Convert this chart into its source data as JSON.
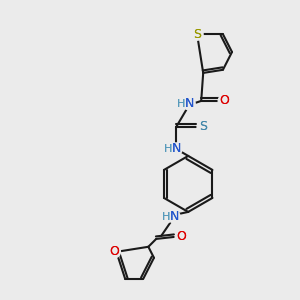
{
  "background_color": "#ebebeb",
  "bond_color": "#1a1a1a",
  "bond_lw": 1.5,
  "N_color": "#2255cc",
  "N_label_color": "#5599bb",
  "O_color": "#dd0000",
  "S_thio_color": "#999900",
  "S_thione_color": "#4488aa",
  "atoms": {
    "N1_label": "N",
    "N2_label": "N",
    "O1_label": "O",
    "O2_label": "O",
    "S1_label": "S",
    "S2_label": "S"
  }
}
